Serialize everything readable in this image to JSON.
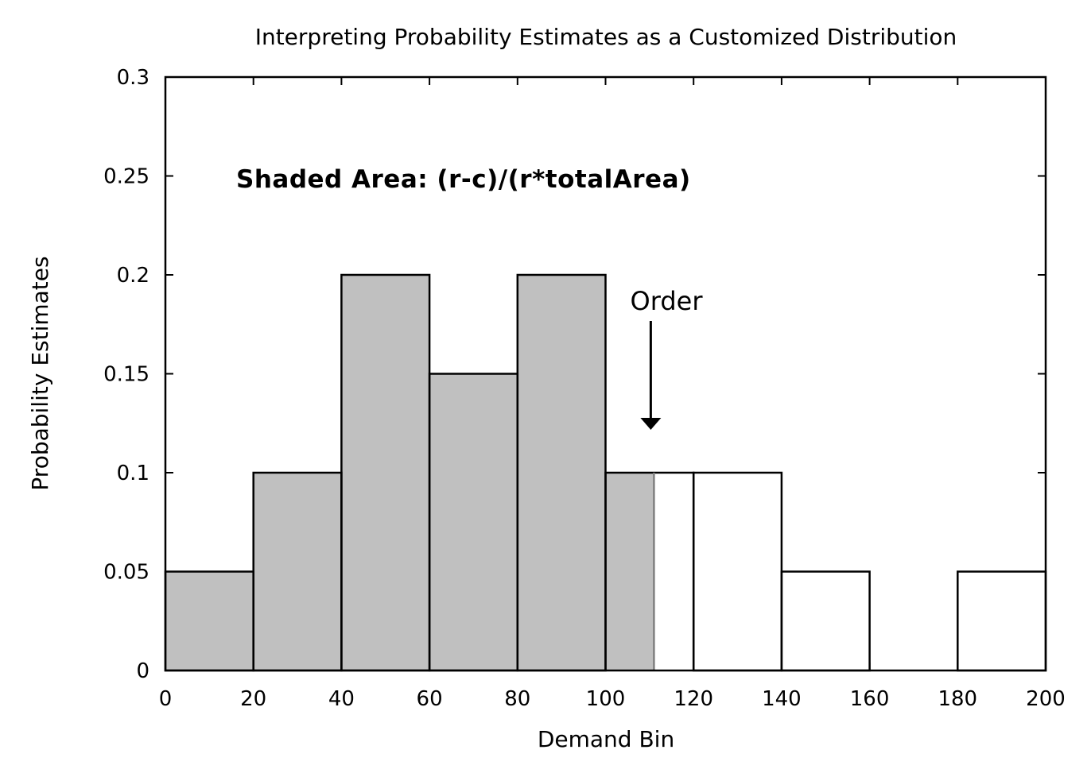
{
  "chart_data": {
    "type": "bar",
    "title": "Interpreting Probability Estimates as a Customized Distribution",
    "xlabel": "Demand Bin",
    "ylabel": "Probability Estimates",
    "xlim": [
      0,
      200
    ],
    "ylim": [
      0,
      0.3
    ],
    "x_ticks": [
      0,
      20,
      40,
      60,
      80,
      100,
      120,
      140,
      160,
      180,
      200
    ],
    "x_tick_labels": [
      "0",
      "20",
      "40",
      "60",
      "80",
      "100",
      "120",
      "140",
      "160",
      "180",
      "200"
    ],
    "y_ticks": [
      0,
      0.05,
      0.1,
      0.15,
      0.2,
      0.25,
      0.3
    ],
    "y_tick_labels": [
      "0",
      "0.05",
      "0.1",
      "0.15",
      "0.2",
      "0.25",
      "0.3"
    ],
    "bins": [
      {
        "start": 0,
        "end": 20,
        "value": 0.05
      },
      {
        "start": 20,
        "end": 40,
        "value": 0.1
      },
      {
        "start": 40,
        "end": 60,
        "value": 0.2
      },
      {
        "start": 60,
        "end": 80,
        "value": 0.15
      },
      {
        "start": 80,
        "end": 100,
        "value": 0.2
      },
      {
        "start": 100,
        "end": 120,
        "value": 0.1
      },
      {
        "start": 120,
        "end": 140,
        "value": 0.1
      },
      {
        "start": 140,
        "end": 160,
        "value": 0.05
      },
      {
        "start": 160,
        "end": 180,
        "value": 0
      },
      {
        "start": 180,
        "end": 200,
        "value": 0.05
      }
    ],
    "shaded_up_to": 111,
    "shade_color": "#c0c0c0",
    "annotations": {
      "shaded_area_text": "Shaded Area: (r-c)/(r*totalArea)",
      "order_text": "Order",
      "order_x": 111
    },
    "grid": false,
    "legend": "none"
  }
}
